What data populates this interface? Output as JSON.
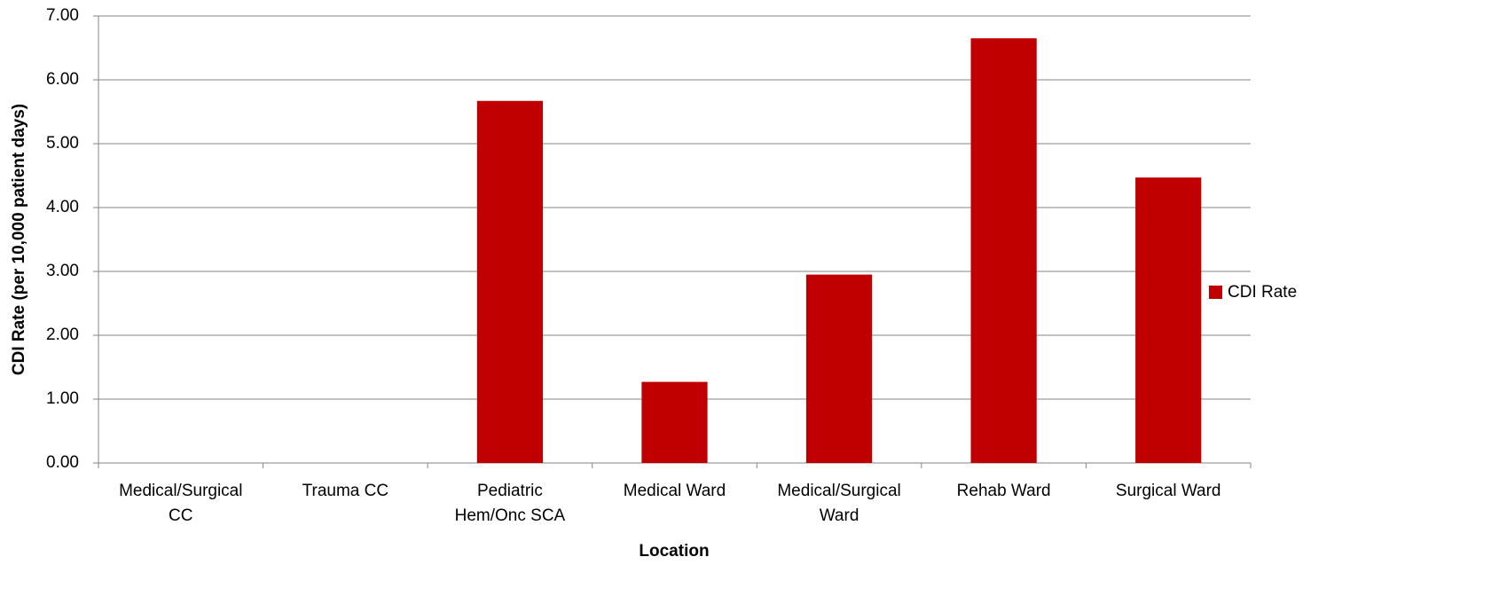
{
  "chart_data": {
    "type": "bar",
    "x_label": "Location",
    "y_label": "CDI Rate (per 10,000 patient days)",
    "categories": [
      "Medical/Surgical CC",
      "Trauma CC",
      "Pediatric Hem/Onc SCA",
      "Medical Ward",
      "Medical/Surgical Ward",
      "Rehab Ward",
      "Surgical Ward"
    ],
    "series": [
      {
        "name": "CDI Rate",
        "color": "#c00000",
        "values": [
          0,
          0,
          5.67,
          1.27,
          2.95,
          6.65,
          4.47
        ]
      }
    ],
    "ylim": [
      0,
      7
    ],
    "yticks": [
      {
        "value": 0,
        "label": "0.00"
      },
      {
        "value": 1,
        "label": "1.00"
      },
      {
        "value": 2,
        "label": "2.00"
      },
      {
        "value": 3,
        "label": "3.00"
      },
      {
        "value": 4,
        "label": "4.00"
      },
      {
        "value": 5,
        "label": "5.00"
      },
      {
        "value": 6,
        "label": "6.00"
      },
      {
        "value": 7,
        "label": "7.00"
      }
    ],
    "grid": true,
    "legend": "right"
  }
}
